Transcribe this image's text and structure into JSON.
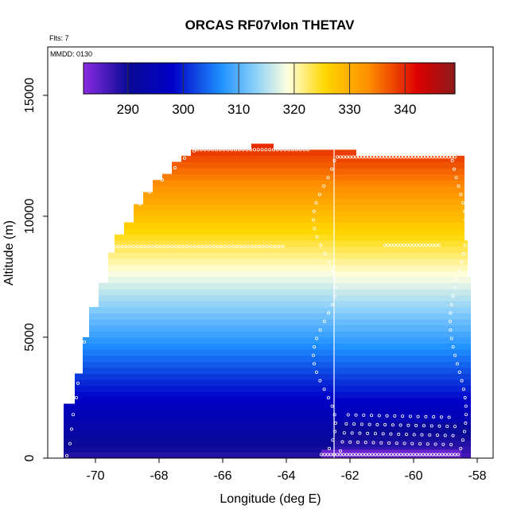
{
  "chart_data": {
    "type": "heatmap",
    "title": "ORCAS RF07vlon THETAV",
    "annotations": [
      "Flts: 7",
      "MMDD: 0130"
    ],
    "xlabel": "Longitude (deg E)",
    "ylabel": "Altitude (m)",
    "xlim": [
      -71.5,
      -57.5
    ],
    "ylim": [
      0,
      17000
    ],
    "xticks": [
      -70,
      -68,
      -66,
      -64,
      -62,
      -60,
      -58
    ],
    "yticks": [
      0,
      5000,
      10000,
      15000
    ],
    "colorbar": {
      "range": [
        282,
        349
      ],
      "ticks": [
        290,
        300,
        310,
        320,
        330,
        340
      ],
      "colors": [
        "#8a2be2",
        "#0a0a96",
        "#0000c8",
        "#1e90ff",
        "#87cefa",
        "#ffffe0",
        "#ffd700",
        "#ff8c00",
        "#dc0000",
        "#8b1a1a"
      ]
    },
    "field": {
      "surface_theta": 288,
      "lapse_K_per_km": 4.0,
      "west_boundary": [
        [
          -71.0,
          0
        ],
        [
          -71.0,
          2200
        ],
        [
          -70.65,
          3400
        ],
        [
          -70.4,
          5000
        ],
        [
          -70.2,
          6200
        ],
        [
          -69.9,
          7300
        ],
        [
          -69.6,
          8400
        ],
        [
          -69.4,
          9200
        ],
        [
          -69.1,
          9800
        ],
        [
          -68.8,
          10400
        ],
        [
          -68.5,
          10900
        ],
        [
          -68.2,
          11400
        ],
        [
          -67.9,
          11800
        ],
        [
          -67.6,
          12200
        ],
        [
          -67.3,
          12500
        ],
        [
          -67.0,
          12700
        ],
        [
          -65.9,
          12800
        ],
        [
          -65.1,
          13000
        ],
        [
          -64.4,
          12800
        ],
        [
          -62.6,
          12800
        ],
        [
          -62.6,
          12700
        ],
        [
          -61.8,
          12500
        ]
      ],
      "east_boundary": [
        [
          -58.4,
          12500
        ],
        [
          -58.4,
          9000
        ],
        [
          -58.2,
          7600
        ],
        [
          -58.2,
          0
        ]
      ],
      "vertical_line_lon": -62.5
    },
    "points": {
      "west_descent": [
        [
          -70.9,
          100
        ],
        [
          -70.8,
          600
        ],
        [
          -70.75,
          1200
        ],
        [
          -70.7,
          1800
        ],
        [
          -70.6,
          2500
        ],
        [
          -70.55,
          3100
        ],
        [
          -70.5,
          3700
        ],
        [
          -70.45,
          4300
        ],
        [
          -70.35,
          4800
        ],
        [
          -70.3,
          5400
        ],
        [
          -70.25,
          5900
        ],
        [
          -70.15,
          6400
        ],
        [
          -70.05,
          6900
        ],
        [
          -69.95,
          7400
        ],
        [
          -69.8,
          7900
        ],
        [
          -69.7,
          8300
        ],
        [
          -69.6,
          8700
        ],
        [
          -69.3,
          9300
        ],
        [
          -68.9,
          9900
        ],
        [
          -68.6,
          10500
        ],
        [
          -68.3,
          11000
        ],
        [
          -67.9,
          11500
        ],
        [
          -67.5,
          12000
        ],
        [
          -67.2,
          12400
        ],
        [
          -66.9,
          12700
        ]
      ],
      "high_leg_lon": [
        -66.8,
        -63.3
      ],
      "high_leg_alt": 12750,
      "mid_leg_lon": [
        -69.4,
        -64.1
      ],
      "mid_leg_alt": 8750,
      "east_high_leg_lon": [
        -62.4,
        -58.7
      ],
      "east_high_leg_alt": 12450,
      "east_mid_leg_lon": [
        -60.9,
        -59.2
      ],
      "east_mid_leg_alt": 8800,
      "low_leg_lon": [
        -62.9,
        -58.6
      ],
      "low_leg_alt": 150
    }
  }
}
